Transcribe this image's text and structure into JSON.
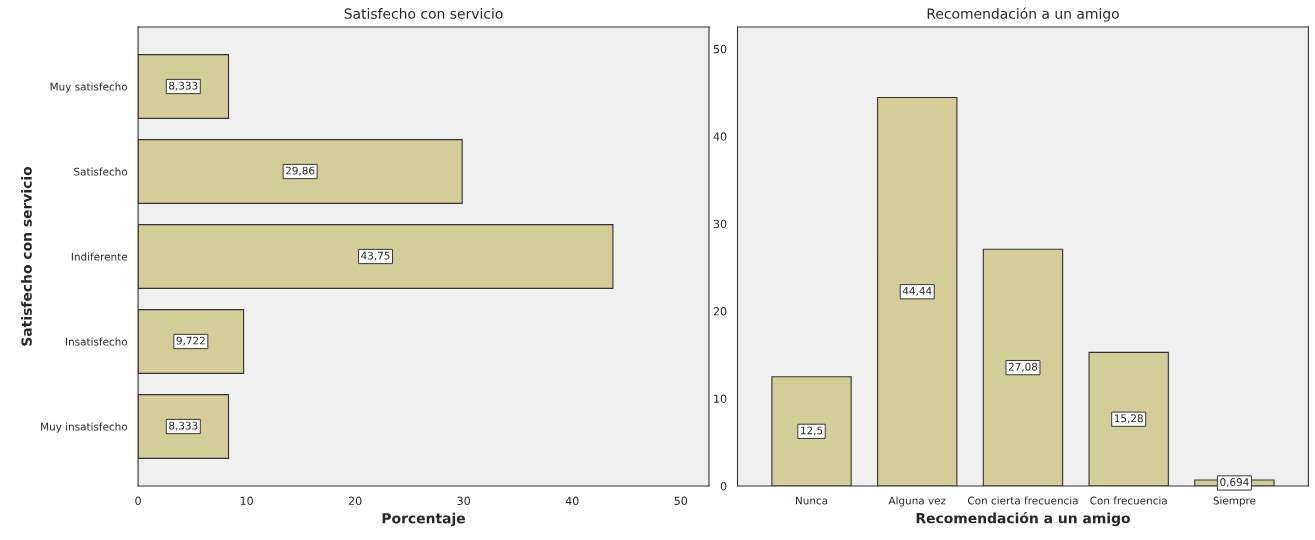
{
  "chart_data": [
    {
      "type": "bar",
      "orientation": "horizontal",
      "title": "Satisfecho con servicio",
      "xlabel": "Porcentaje",
      "ylabel": "Satisfecho con servicio",
      "categories": [
        "Muy satisfecho",
        "Satisfecho",
        "Indiferente",
        "Insatisfecho",
        "Muy insatisfecho"
      ],
      "values": [
        8.333,
        29.86,
        43.75,
        9.722,
        8.333
      ],
      "value_labels": [
        "8,333",
        "29,86",
        "43,75",
        "9,722",
        "8,333"
      ],
      "color": "#d3ce97",
      "xlim": [
        0,
        52.6
      ],
      "xticks": [
        0,
        10,
        20,
        30,
        40,
        50
      ],
      "grid": false
    },
    {
      "type": "bar",
      "title": "Recomendación a un amigo",
      "xlabel": "Recomendación a un amigo",
      "categories": [
        "Nunca",
        "Alguna vez",
        "Con cierta frecuencia",
        "Con frecuencia",
        "Siempre"
      ],
      "values": [
        12.5,
        44.44,
        27.08,
        15.28,
        0.694
      ],
      "value_labels": [
        "12,5",
        "44,44",
        "27,08",
        "15,28",
        "0,694"
      ],
      "color": "#d3ce97",
      "ylim": [
        0,
        52.5
      ],
      "yticks": [
        0,
        10,
        20,
        30,
        40,
        50
      ],
      "grid": false
    }
  ]
}
